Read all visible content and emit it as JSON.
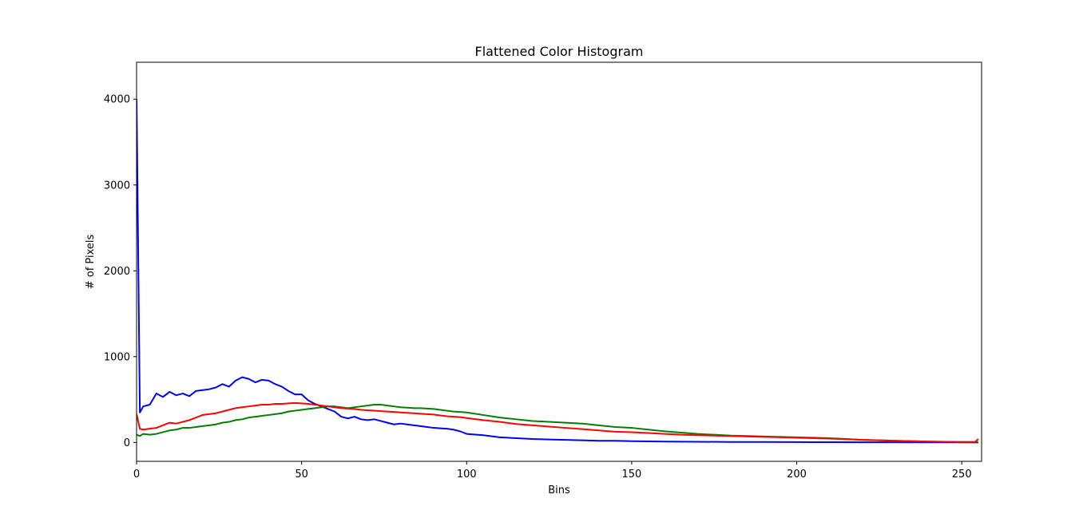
{
  "chart_data": {
    "type": "line",
    "title": "Flattened Color Histogram",
    "xlabel": "Bins",
    "ylabel": "# of Pixels",
    "xlim": [
      0,
      256
    ],
    "ylim": [
      -220,
      4430
    ],
    "xticks": [
      0,
      50,
      100,
      150,
      200,
      250
    ],
    "yticks": [
      0,
      1000,
      2000,
      3000,
      4000
    ],
    "grid": false,
    "legend": "none",
    "series": [
      {
        "color": "#0000ff",
        "x": [
          0,
          1,
          2,
          4,
          6,
          8,
          10,
          12,
          14,
          16,
          18,
          20,
          22,
          24,
          26,
          28,
          30,
          32,
          34,
          36,
          38,
          40,
          42,
          44,
          46,
          48,
          50,
          52,
          54,
          56,
          58,
          60,
          62,
          64,
          66,
          68,
          70,
          72,
          74,
          76,
          78,
          80,
          82,
          84,
          86,
          88,
          90,
          92,
          94,
          96,
          98,
          100,
          105,
          110,
          115,
          120,
          125,
          130,
          135,
          140,
          145,
          150,
          160,
          170,
          180,
          190,
          200,
          210,
          220,
          230,
          240,
          250,
          255
        ],
        "values": [
          4000,
          350,
          420,
          440,
          570,
          530,
          590,
          550,
          570,
          540,
          600,
          610,
          620,
          640,
          680,
          650,
          720,
          760,
          740,
          700,
          730,
          720,
          680,
          650,
          600,
          560,
          560,
          490,
          450,
          420,
          390,
          360,
          300,
          280,
          300,
          270,
          260,
          270,
          250,
          230,
          210,
          220,
          210,
          200,
          190,
          180,
          170,
          165,
          160,
          150,
          130,
          100,
          85,
          60,
          50,
          40,
          35,
          30,
          25,
          20,
          20,
          15,
          10,
          8,
          6,
          5,
          4,
          3,
          2,
          2,
          1,
          1,
          0
        ]
      },
      {
        "color": "#008000",
        "x": [
          0,
          1,
          2,
          4,
          6,
          8,
          10,
          12,
          14,
          16,
          18,
          20,
          22,
          24,
          26,
          28,
          30,
          32,
          34,
          36,
          38,
          40,
          42,
          44,
          46,
          48,
          50,
          52,
          54,
          56,
          58,
          60,
          62,
          64,
          66,
          68,
          70,
          72,
          74,
          76,
          78,
          80,
          82,
          84,
          86,
          88,
          90,
          92,
          94,
          96,
          98,
          100,
          105,
          110,
          115,
          120,
          125,
          130,
          135,
          140,
          145,
          150,
          155,
          160,
          165,
          170,
          175,
          180,
          185,
          190,
          195,
          200,
          205,
          210,
          215,
          220,
          225,
          230,
          235,
          240,
          245,
          250,
          255
        ],
        "values": [
          90,
          75,
          100,
          90,
          100,
          120,
          140,
          150,
          170,
          170,
          180,
          190,
          200,
          210,
          230,
          240,
          260,
          270,
          290,
          300,
          310,
          320,
          330,
          340,
          360,
          370,
          380,
          390,
          400,
          410,
          420,
          420,
          410,
          400,
          410,
          420,
          430,
          440,
          440,
          430,
          420,
          410,
          405,
          400,
          400,
          395,
          390,
          380,
          370,
          360,
          355,
          350,
          320,
          290,
          270,
          250,
          240,
          230,
          220,
          200,
          180,
          170,
          150,
          130,
          115,
          100,
          90,
          80,
          75,
          70,
          65,
          60,
          55,
          50,
          40,
          30,
          25,
          20,
          15,
          10,
          8,
          5,
          5
        ]
      },
      {
        "color": "#ff0000",
        "x": [
          0,
          1,
          2,
          4,
          6,
          8,
          10,
          12,
          14,
          16,
          18,
          20,
          22,
          24,
          26,
          28,
          30,
          32,
          34,
          36,
          38,
          40,
          42,
          44,
          46,
          48,
          50,
          52,
          54,
          56,
          58,
          60,
          62,
          64,
          66,
          68,
          70,
          72,
          74,
          76,
          78,
          80,
          82,
          84,
          86,
          88,
          90,
          92,
          94,
          96,
          98,
          100,
          105,
          110,
          115,
          120,
          125,
          130,
          135,
          140,
          145,
          150,
          155,
          160,
          165,
          170,
          175,
          180,
          185,
          190,
          195,
          200,
          205,
          210,
          215,
          220,
          225,
          230,
          235,
          240,
          245,
          250,
          254,
          255
        ],
        "values": [
          330,
          160,
          150,
          160,
          170,
          200,
          230,
          220,
          240,
          260,
          290,
          320,
          330,
          340,
          360,
          380,
          400,
          410,
          420,
          430,
          440,
          440,
          450,
          450,
          455,
          460,
          455,
          450,
          440,
          430,
          420,
          410,
          400,
          395,
          390,
          380,
          375,
          370,
          365,
          360,
          355,
          350,
          345,
          340,
          335,
          330,
          325,
          315,
          305,
          300,
          295,
          285,
          260,
          240,
          215,
          200,
          185,
          170,
          155,
          140,
          125,
          120,
          110,
          100,
          90,
          85,
          80,
          75,
          70,
          65,
          60,
          55,
          50,
          45,
          38,
          30,
          25,
          20,
          15,
          10,
          8,
          5,
          5,
          40
        ]
      }
    ]
  }
}
